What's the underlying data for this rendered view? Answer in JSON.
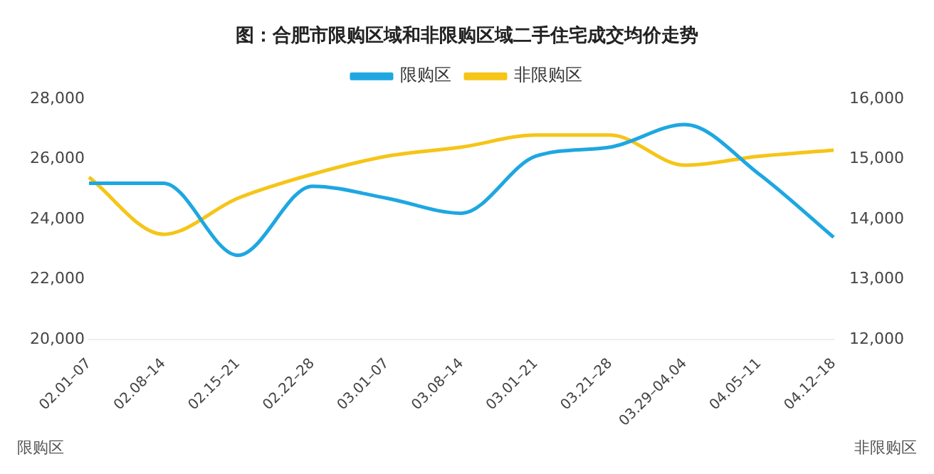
{
  "chart_data": {
    "type": "line",
    "title": "图：合肥市限购区域和非限购区域二手住宅成交均价走势",
    "ylabel": "限购区",
    "y2label": "非限购区",
    "categories": [
      "02.01–07",
      "02.08–14",
      "02.15–21",
      "02.22–28",
      "03.01–07",
      "03.08–14",
      "03.01–21",
      "03.21–28",
      "03.29–04.04",
      "04.05–11",
      "04.12–18"
    ],
    "series": [
      {
        "name": "限购区",
        "color": "#1ea7e1",
        "values": [
          25200,
          25200,
          22800,
          25100,
          24700,
          24200,
          26100,
          26400,
          27150,
          25500,
          23400
        ]
      },
      {
        "name": "非限购区",
        "color": "#f5c518",
        "axis": "y2",
        "values": [
          14700,
          13750,
          14350,
          14750,
          15050,
          15200,
          15400,
          15400,
          14900,
          15050,
          15150
        ]
      }
    ],
    "ylim": [
      20000,
      28000
    ],
    "yticks": [
      {
        "value": 20000,
        "label": "20,000"
      },
      {
        "value": 22000,
        "label": "22,000"
      },
      {
        "value": 24000,
        "label": "24,000"
      },
      {
        "value": 26000,
        "label": "26,000"
      },
      {
        "value": 28000,
        "label": "28,000"
      }
    ],
    "y2lim": [
      12000,
      16000
    ],
    "y2ticks": [
      {
        "value": 12000,
        "label": "12,000"
      },
      {
        "value": 13000,
        "label": "13,000"
      },
      {
        "value": 14000,
        "label": "14,000"
      },
      {
        "value": 15000,
        "label": "15,000"
      },
      {
        "value": 16000,
        "label": "16,000"
      }
    ],
    "legend": "top",
    "grid": false,
    "marker": "none",
    "line_style": "solid"
  }
}
